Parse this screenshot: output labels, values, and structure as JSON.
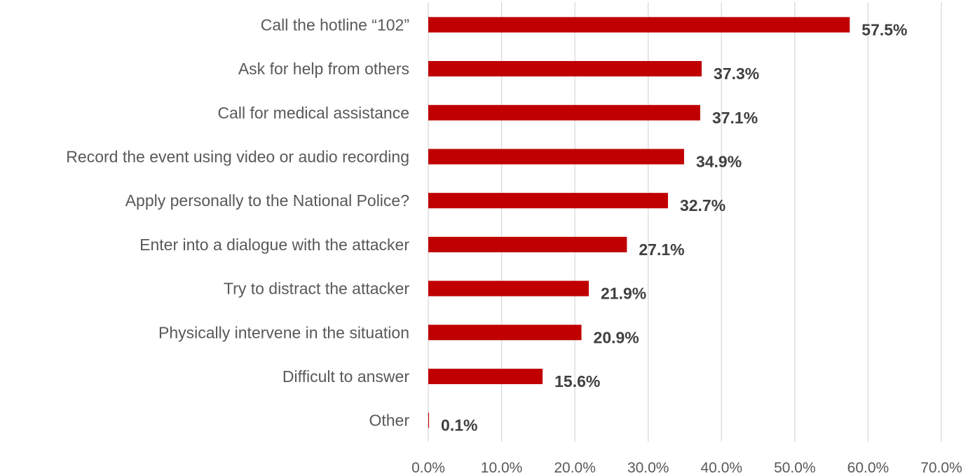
{
  "chart_data": {
    "type": "bar",
    "orientation": "horizontal",
    "categories": [
      "Call the hotline “102”",
      "Ask for help from others",
      "Call for medical assistance",
      "Record the event using video or audio recording",
      "Apply personally to the National Police?",
      "Enter into a dialogue with the attacker",
      "Try to distract the attacker",
      "Physically intervene in the situation",
      "Difficult to answer",
      "Other"
    ],
    "values": [
      57.5,
      37.3,
      37.1,
      34.9,
      32.7,
      27.1,
      21.9,
      20.9,
      15.6,
      0.1
    ],
    "data_labels": [
      "57.5%",
      "37.3%",
      "37.1%",
      "34.9%",
      "32.7%",
      "27.1%",
      "21.9%",
      "20.9%",
      "15.6%",
      "0.1%"
    ],
    "xlim": [
      0,
      70
    ],
    "x_ticks": [
      0,
      10,
      20,
      30,
      40,
      50,
      60,
      70
    ],
    "x_tick_labels": [
      "0.0%",
      "10.0%",
      "20.0%",
      "30.0%",
      "40.0%",
      "50.0%",
      "60.0%",
      "70.0%"
    ],
    "title": "",
    "xlabel": "",
    "ylabel": "",
    "grid": "vertical",
    "legend": "none",
    "colors": {
      "bar": "#c00000",
      "grid": "#d9d9d9",
      "axis_text": "#595959",
      "data_label": "#404040"
    }
  }
}
